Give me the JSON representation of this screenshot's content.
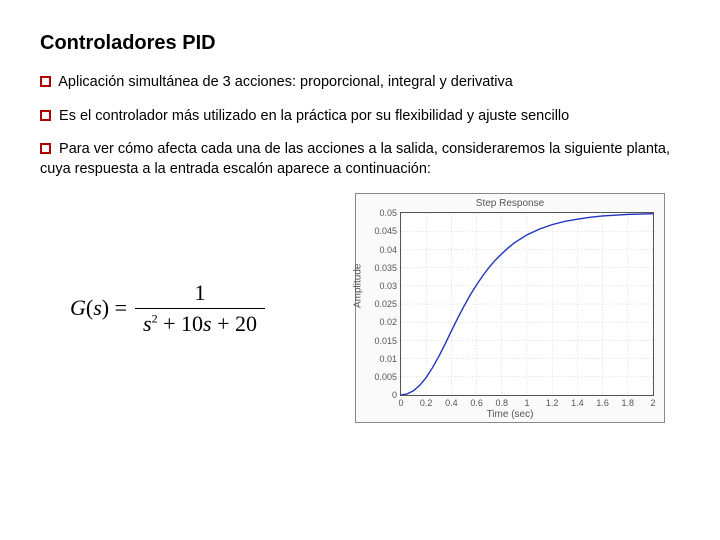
{
  "title": "Controladores PID",
  "bullets": [
    "Aplicación simultánea de 3 acciones: proporcional, integral y derivativa",
    "Es el controlador más utilizado en la práctica por su flexibilidad y ajuste sencillo",
    "Para ver cómo afecta cada una de las acciones a la salida, consideraremos la siguiente planta, cuya respuesta a la entrada escalón aparece a continuación:"
  ],
  "formula": {
    "lhs": "G(s) =",
    "numerator": "1",
    "denominator": "s² + 10s + 20"
  },
  "chart": {
    "title": "Step Response",
    "xlabel": "Time (sec)",
    "ylabel": "Amplitude",
    "xlim": [
      0,
      2
    ],
    "ylim": [
      0,
      0.05
    ],
    "xticks": [
      0,
      0.2,
      0.4,
      0.6,
      0.8,
      1,
      1.2,
      1.4,
      1.6,
      1.8,
      2
    ],
    "yticks": [
      0,
      0.005,
      0.01,
      0.015,
      0.02,
      0.025,
      0.03,
      0.035,
      0.04,
      0.045,
      0.05
    ],
    "line_color": "#2030c0",
    "grid_color": "#bbbbbb",
    "background_color": "#ffffff",
    "curve_points": [
      [
        0.0,
        0.0
      ],
      [
        0.05,
        0.0003
      ],
      [
        0.1,
        0.0012
      ],
      [
        0.15,
        0.0027
      ],
      [
        0.2,
        0.0048
      ],
      [
        0.25,
        0.0075
      ],
      [
        0.3,
        0.0106
      ],
      [
        0.35,
        0.014
      ],
      [
        0.4,
        0.0176
      ],
      [
        0.45,
        0.0211
      ],
      [
        0.5,
        0.0244
      ],
      [
        0.55,
        0.0275
      ],
      [
        0.6,
        0.0303
      ],
      [
        0.65,
        0.0328
      ],
      [
        0.7,
        0.0351
      ],
      [
        0.75,
        0.0371
      ],
      [
        0.8,
        0.0388
      ],
      [
        0.85,
        0.0404
      ],
      [
        0.9,
        0.0418
      ],
      [
        0.95,
        0.0429
      ],
      [
        1.0,
        0.044
      ],
      [
        1.1,
        0.0456
      ],
      [
        1.2,
        0.0468
      ],
      [
        1.3,
        0.0477
      ],
      [
        1.4,
        0.0483
      ],
      [
        1.5,
        0.0488
      ],
      [
        1.6,
        0.0492
      ],
      [
        1.7,
        0.0494
      ],
      [
        1.8,
        0.0496
      ],
      [
        1.9,
        0.0497
      ],
      [
        2.0,
        0.0498
      ]
    ]
  }
}
